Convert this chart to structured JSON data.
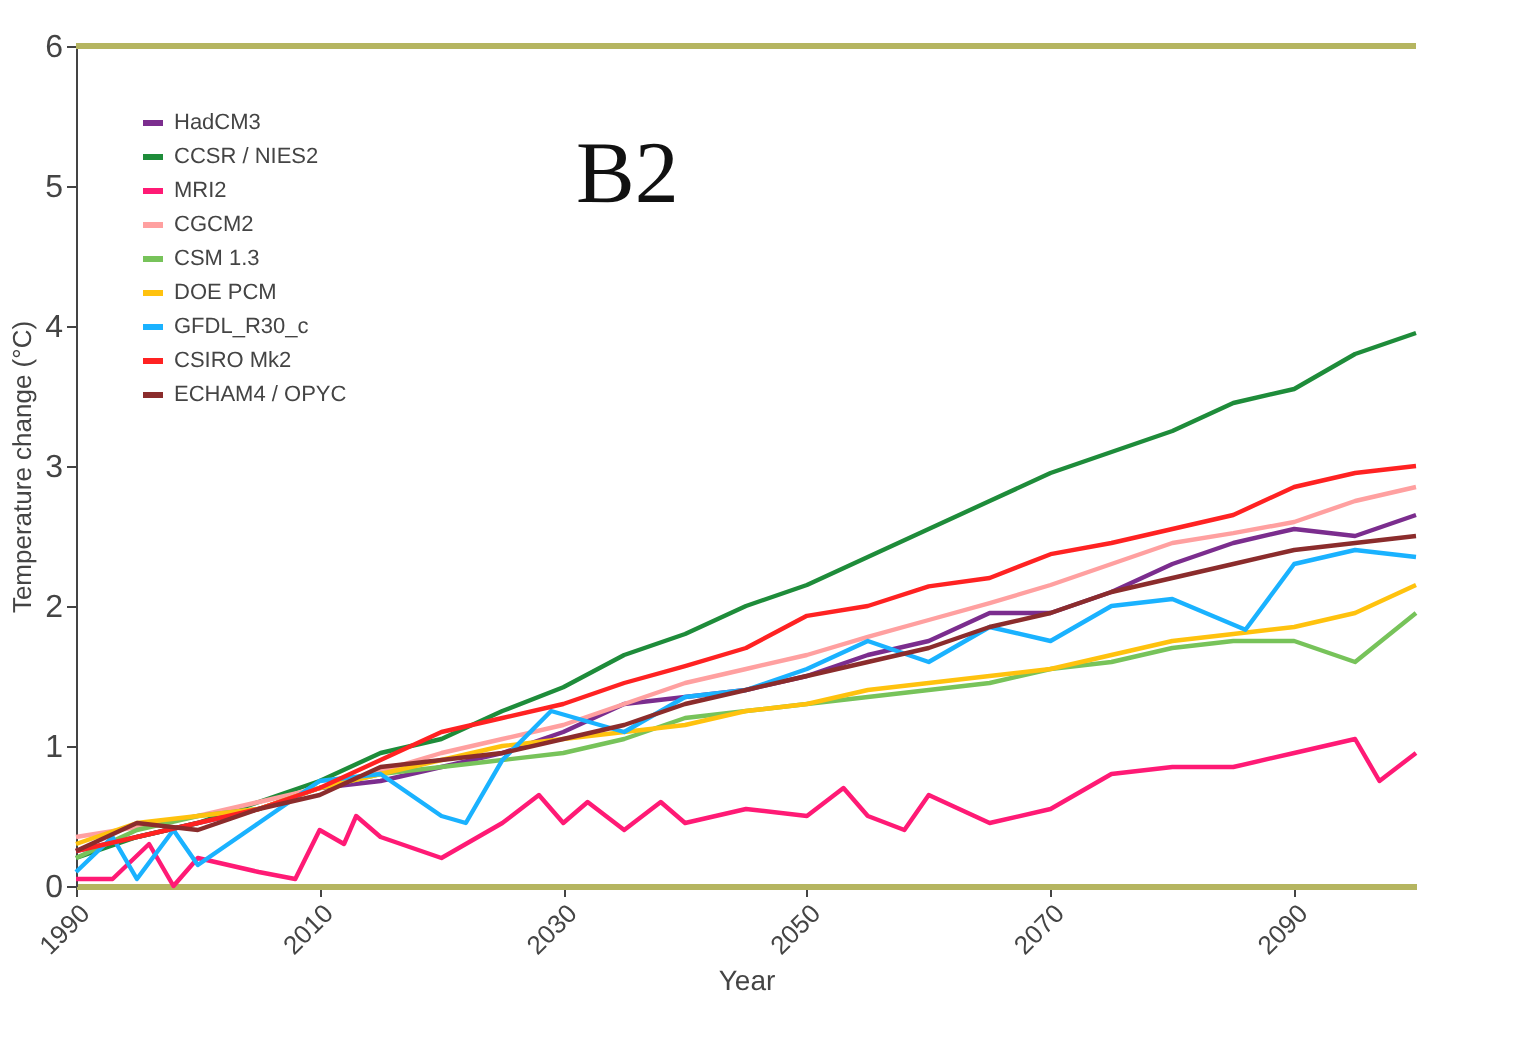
{
  "chart_data": {
    "type": "line",
    "xlabel": "Year",
    "ylabel": "Temperature change (°C)",
    "annotations": [
      "B2"
    ],
    "xlim": [
      1990,
      2100
    ],
    "xticks": [
      1990,
      2010,
      2030,
      2050,
      2070,
      2090
    ],
    "ylim": [
      0,
      6
    ],
    "yticks": [
      0,
      1,
      2,
      3,
      4,
      5,
      6
    ],
    "grid": false,
    "legend": "top left",
    "marker": "none",
    "line_style": "solid",
    "x": [
      1990,
      1995,
      2000,
      2005,
      2010,
      2015,
      2020,
      2025,
      2030,
      2035,
      2040,
      2045,
      2050,
      2055,
      2060,
      2065,
      2070,
      2075,
      2080,
      2085,
      2090,
      2095,
      2100
    ],
    "series": [
      {
        "name": "HadCM3",
        "color": "#7b2d8e",
        "values": [
          0.25,
          0.35,
          0.45,
          0.55,
          0.7,
          0.75,
          0.85,
          0.95,
          1.1,
          1.3,
          1.35,
          1.4,
          1.5,
          1.65,
          1.75,
          1.95,
          1.95,
          2.1,
          2.3,
          2.45,
          2.55,
          2.5,
          2.65
        ]
      },
      {
        "name": "CCSR / NIES2",
        "color": "#1e8c3a",
        "values": [
          0.2,
          0.35,
          0.45,
          0.6,
          0.75,
          0.95,
          1.05,
          1.25,
          1.42,
          1.65,
          1.8,
          2.0,
          2.15,
          2.35,
          2.55,
          2.75,
          2.95,
          3.1,
          3.25,
          3.45,
          3.55,
          3.8,
          3.95
        ]
      },
      {
        "name": "MRI2",
        "color": "#ff1a75",
        "x": [
          1990,
          1993,
          1996,
          1998,
          2000,
          2005,
          2008,
          2010,
          2012,
          2013,
          2015,
          2020,
          2025,
          2028,
          2030,
          2032,
          2035,
          2038,
          2040,
          2045,
          2050,
          2053,
          2055,
          2058,
          2060,
          2065,
          2070,
          2075,
          2080,
          2085,
          2090,
          2095,
          2097,
          2100
        ],
        "values": [
          0.05,
          0.05,
          0.3,
          0.0,
          0.2,
          0.1,
          0.05,
          0.4,
          0.3,
          0.5,
          0.35,
          0.2,
          0.45,
          0.65,
          0.45,
          0.6,
          0.4,
          0.6,
          0.45,
          0.55,
          0.5,
          0.7,
          0.5,
          0.4,
          0.65,
          0.45,
          0.55,
          0.8,
          0.85,
          0.85,
          0.95,
          1.05,
          0.75,
          0.95
        ]
      },
      {
        "name": "CGCM2",
        "color": "#ffa0a0",
        "values": [
          0.35,
          0.42,
          0.5,
          0.6,
          0.7,
          0.82,
          0.95,
          1.05,
          1.15,
          1.3,
          1.45,
          1.55,
          1.65,
          1.78,
          1.9,
          2.02,
          2.15,
          2.3,
          2.45,
          2.52,
          2.6,
          2.75,
          2.85
        ]
      },
      {
        "name": "CSM 1.3",
        "color": "#77c35a",
        "values": [
          0.2,
          0.4,
          0.5,
          0.55,
          0.7,
          0.8,
          0.85,
          0.9,
          0.95,
          1.05,
          1.2,
          1.25,
          1.3,
          1.35,
          1.4,
          1.45,
          1.55,
          1.6,
          1.7,
          1.75,
          1.75,
          1.6,
          1.95
        ]
      },
      {
        "name": "DOE PCM",
        "color": "#ffc20e",
        "values": [
          0.3,
          0.45,
          0.5,
          0.55,
          0.7,
          0.8,
          0.9,
          1.0,
          1.05,
          1.1,
          1.15,
          1.25,
          1.3,
          1.4,
          1.45,
          1.5,
          1.55,
          1.65,
          1.75,
          1.8,
          1.85,
          1.95,
          2.15
        ]
      },
      {
        "name": "GFDL_R30_c",
        "color": "#1ab2ff",
        "x": [
          1990,
          1993,
          1995,
          1998,
          2000,
          2005,
          2010,
          2015,
          2020,
          2022,
          2025,
          2029,
          2035,
          2040,
          2045,
          2050,
          2055,
          2060,
          2065,
          2070,
          2075,
          2080,
          2086,
          2090,
          2095,
          2100
        ],
        "values": [
          0.1,
          0.35,
          0.05,
          0.4,
          0.15,
          0.45,
          0.75,
          0.8,
          0.5,
          0.45,
          0.9,
          1.25,
          1.1,
          1.35,
          1.4,
          1.55,
          1.75,
          1.6,
          1.85,
          1.75,
          2.0,
          2.05,
          1.83,
          2.3,
          2.4,
          2.35
        ]
      },
      {
        "name": "CSIRO Mk2",
        "color": "#ff2222",
        "values": [
          0.25,
          0.35,
          0.45,
          0.55,
          0.7,
          0.9,
          1.1,
          1.2,
          1.3,
          1.45,
          1.57,
          1.7,
          1.93,
          2.0,
          2.14,
          2.2,
          2.37,
          2.45,
          2.55,
          2.65,
          2.85,
          2.95,
          3.0
        ]
      },
      {
        "name": "ECHAM4 / OPYC",
        "color": "#8b2c2c",
        "values": [
          0.25,
          0.45,
          0.4,
          0.55,
          0.65,
          0.85,
          0.9,
          0.95,
          1.05,
          1.15,
          1.3,
          1.4,
          1.5,
          1.6,
          1.7,
          1.85,
          1.95,
          2.1,
          2.2,
          2.3,
          2.4,
          2.45,
          2.5
        ]
      }
    ]
  }
}
